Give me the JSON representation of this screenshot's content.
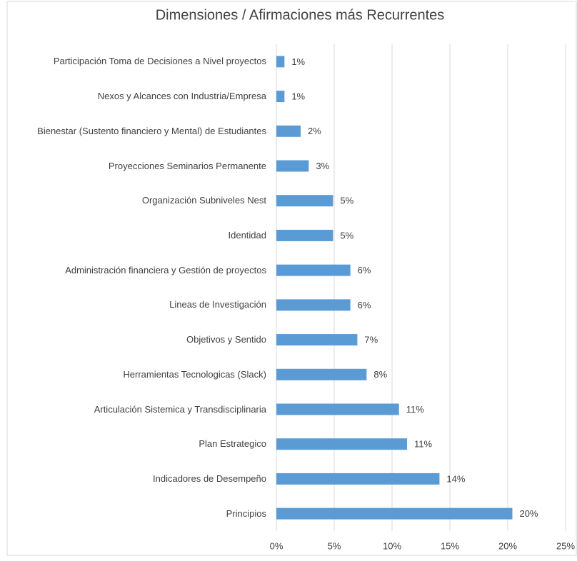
{
  "chart_data": {
    "type": "hbar",
    "title": "Dimensiones / Afirmaciones más Recurrentes",
    "categories": [
      "Participación Toma de Decisiones a Nivel proyectos",
      "Nexos y Alcances con Industria/Empresa",
      "Bienestar (Sustento financiero y Mental) de Estudiantes",
      "Proyecciones Seminarios Permanente",
      "Organización Subniveles Nest",
      "Identidad",
      "Administración financiera y Gestión de proyectos",
      "Lineas de Investigación",
      "Objetivos y Sentido",
      "Herramientas Tecnologicas (Slack)",
      "Articulación Sistemica y Transdisciplinaria",
      "Plan Estrategico",
      "Indicadores de Desempeño",
      "Principios"
    ],
    "values": [
      0.7,
      0.7,
      2.1,
      2.8,
      4.9,
      4.9,
      6.4,
      6.4,
      7.0,
      7.8,
      10.6,
      11.3,
      14.1,
      20.4
    ],
    "value_labels": [
      "1%",
      "1%",
      "2%",
      "3%",
      "5%",
      "5%",
      "6%",
      "6%",
      "7%",
      "8%",
      "11%",
      "11%",
      "14%",
      "20%"
    ],
    "color": "#5b9bd5",
    "xlim": [
      0,
      25
    ],
    "xticks": [
      {
        "value": 0,
        "label": "0%"
      },
      {
        "value": 5,
        "label": "5%"
      },
      {
        "value": 10,
        "label": "10%"
      },
      {
        "value": 15,
        "label": "15%"
      },
      {
        "value": 20,
        "label": "20%"
      },
      {
        "value": 25,
        "label": "25%"
      }
    ],
    "grid": true
  }
}
